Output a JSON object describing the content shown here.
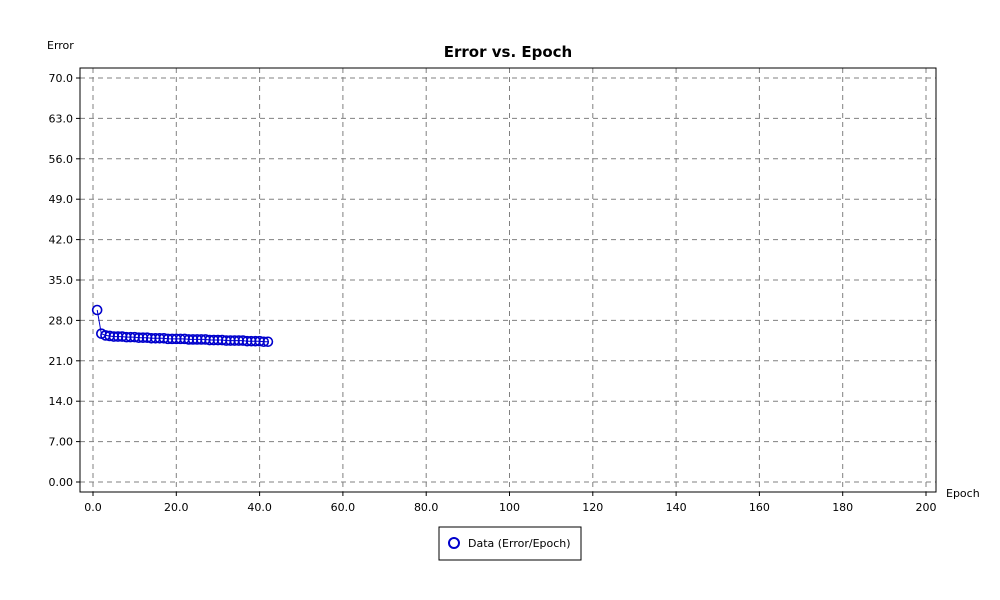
{
  "chart_data": {
    "type": "line",
    "title": "Error vs. Epoch",
    "xlabel": "Epoch",
    "ylabel": "Error",
    "xlim": [
      0,
      200
    ],
    "ylim": [
      0,
      70
    ],
    "x_ticks": [
      "0.0",
      "20.0",
      "40.0",
      "60.0",
      "80.0",
      "100",
      "120",
      "140",
      "160",
      "180",
      "200"
    ],
    "y_ticks": [
      "0.00",
      "7.00",
      "14.0",
      "21.0",
      "28.0",
      "35.0",
      "42.0",
      "49.0",
      "56.0",
      "63.0",
      "70.0"
    ],
    "grid": true,
    "legend_position": "bottom-center",
    "series": [
      {
        "name": "Data (Error/Epoch)",
        "color": "#0000cc",
        "x": [
          1,
          2,
          3,
          4,
          5,
          6,
          7,
          8,
          9,
          10,
          11,
          12,
          13,
          14,
          15,
          16,
          17,
          18,
          19,
          20,
          21,
          22,
          23,
          24,
          25,
          26,
          27,
          28,
          29,
          30,
          31,
          32,
          33,
          34,
          35,
          36,
          37,
          38,
          39,
          40,
          41,
          42
        ],
        "y": [
          29.8,
          25.7,
          25.4,
          25.3,
          25.2,
          25.2,
          25.2,
          25.1,
          25.1,
          25.1,
          25.0,
          25.0,
          25.0,
          24.9,
          24.9,
          24.9,
          24.9,
          24.8,
          24.8,
          24.8,
          24.8,
          24.8,
          24.7,
          24.7,
          24.7,
          24.7,
          24.7,
          24.6,
          24.6,
          24.6,
          24.6,
          24.5,
          24.5,
          24.5,
          24.5,
          24.5,
          24.4,
          24.4,
          24.4,
          24.4,
          24.3,
          24.3
        ]
      }
    ]
  }
}
